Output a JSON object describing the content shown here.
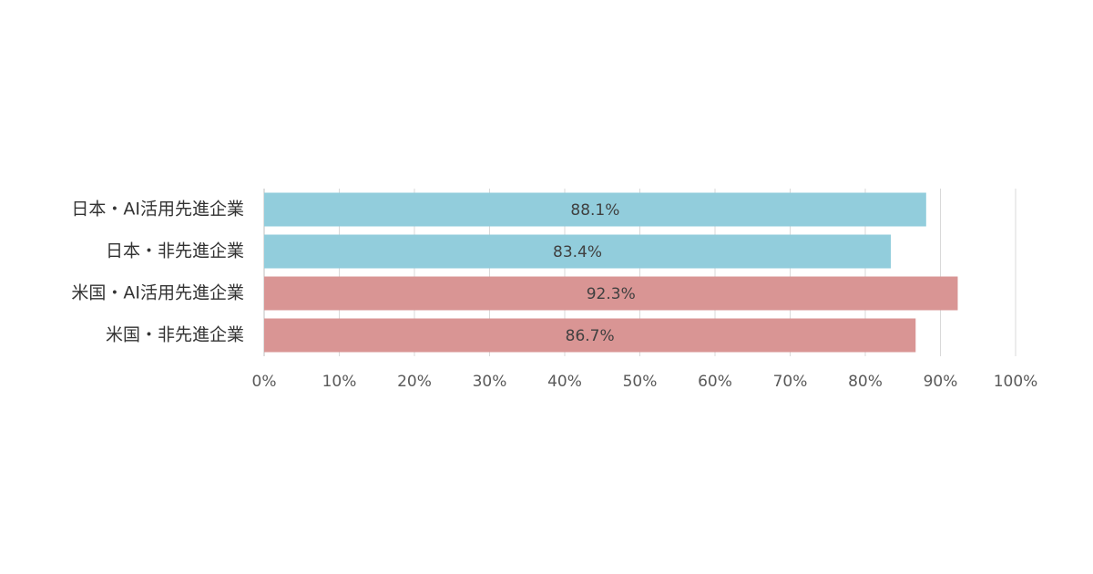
{
  "chart_data": {
    "type": "barh",
    "categories": [
      "日本・AI活用先進企業",
      "日本・非先進企業",
      "米国・AI活用先進企業",
      "米国・非先進企業"
    ],
    "values": [
      88.1,
      83.4,
      92.3,
      86.7
    ],
    "value_labels": [
      "88.1%",
      "83.4%",
      "92.3%",
      "86.7%"
    ],
    "colors": [
      "#92cddc",
      "#92cddc",
      "#d99594",
      "#d99594"
    ],
    "xlim": [
      0,
      100
    ],
    "xticks": [
      {
        "value": 0,
        "label": "0%"
      },
      {
        "value": 10,
        "label": "10%"
      },
      {
        "value": 20,
        "label": "20%"
      },
      {
        "value": 30,
        "label": "30%"
      },
      {
        "value": 40,
        "label": "40%"
      },
      {
        "value": 50,
        "label": "50%"
      },
      {
        "value": 60,
        "label": "60%"
      },
      {
        "value": 70,
        "label": "70%"
      },
      {
        "value": 80,
        "label": "80%"
      },
      {
        "value": 90,
        "label": "90%"
      },
      {
        "value": 100,
        "label": "100%"
      }
    ],
    "grid": true
  }
}
